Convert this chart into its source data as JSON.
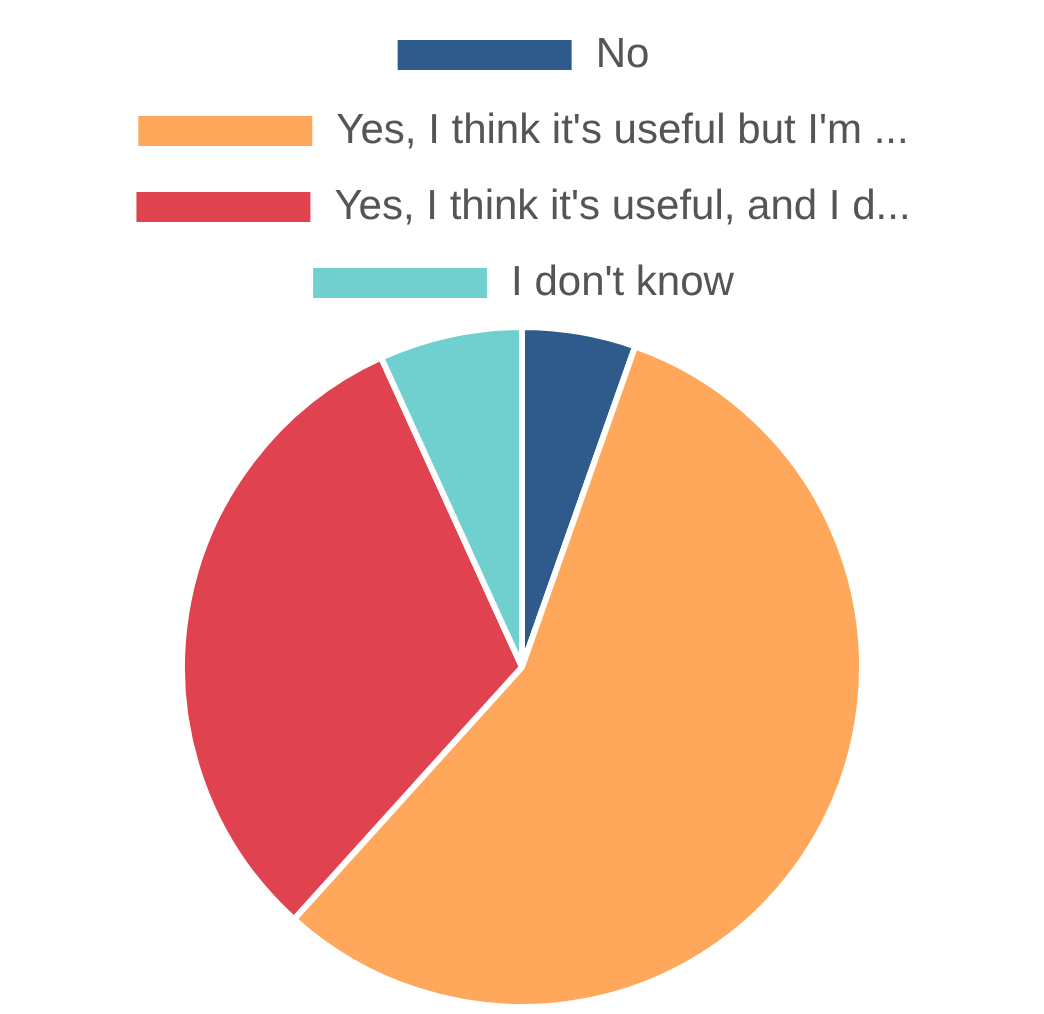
{
  "chart_data": {
    "type": "pie",
    "categories": [
      "No",
      "Yes, I think it's useful but I'm ...",
      "Yes, I think it's useful, and I d...",
      "I don't know"
    ],
    "values": [
      5.4,
      56.3,
      31.5,
      6.8
    ],
    "colors": [
      "#2f5b8c",
      "#ffa75a",
      "#e0434f",
      "#70d0d0"
    ],
    "legend": "top"
  }
}
